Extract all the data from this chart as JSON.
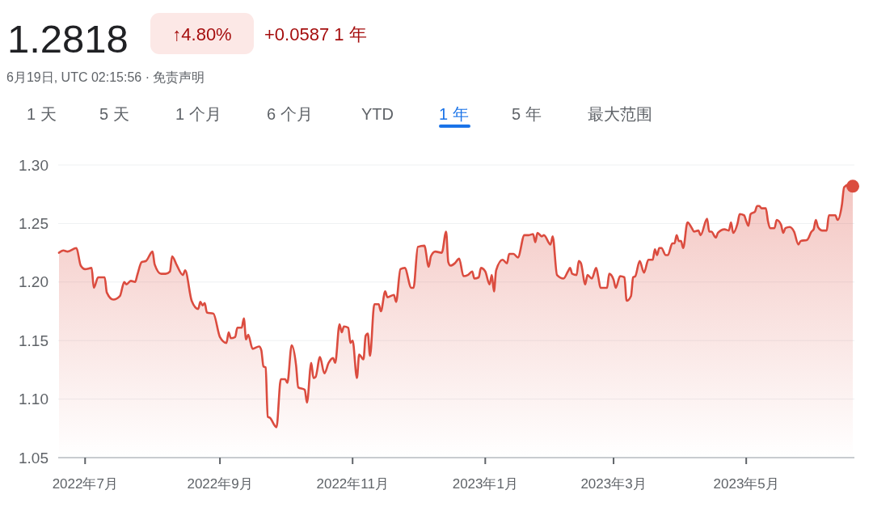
{
  "chart_data": {
    "type": "area",
    "title": "1.2818",
    "subtitle": "6月19日, UTC 02:15:56 · 免责声明",
    "annotations": [
      "↑4.80%",
      "+0.0587 1 年",
      "1 天",
      "5 天",
      "1 个月",
      "6 个月",
      "YTD",
      "1 年",
      "5 年",
      "最大范围"
    ],
    "x": [
      "2022-06-19",
      "2022-06-21",
      "2022-06-23",
      "2022-06-27",
      "2022-06-29",
      "2022-07-01",
      "2022-07-04",
      "2022-07-05",
      "2022-07-07",
      "2022-07-10",
      "2022-07-11",
      "2022-07-14",
      "2022-07-17",
      "2022-07-19",
      "2022-07-20",
      "2022-07-22",
      "2022-07-24",
      "2022-07-25",
      "2022-07-27",
      "2022-07-29",
      "2022-08-01",
      "2022-08-02",
      "2022-08-05",
      "2022-08-07",
      "2022-08-09",
      "2022-08-10",
      "2022-08-12",
      "2022-08-15",
      "2022-08-16",
      "2022-08-19",
      "2022-08-22",
      "2022-08-23",
      "2022-08-24",
      "2022-08-25",
      "2022-08-26",
      "2022-08-29",
      "2022-09-01",
      "2022-09-04",
      "2022-09-05",
      "2022-09-06",
      "2022-09-08",
      "2022-09-09",
      "2022-09-11",
      "2022-09-12",
      "2022-09-13",
      "2022-09-14",
      "2022-09-16",
      "2022-09-19",
      "2022-09-20",
      "2022-09-21",
      "2022-09-22",
      "2022-09-23",
      "2022-09-24",
      "2022-09-27",
      "2022-09-29",
      "2022-10-01",
      "2022-10-02",
      "2022-10-04",
      "2022-10-06",
      "2022-10-07",
      "2022-10-10",
      "2022-10-11",
      "2022-10-13",
      "2022-10-14",
      "2022-10-15",
      "2022-10-17",
      "2022-10-19",
      "2022-10-21",
      "2022-10-23",
      "2022-10-24",
      "2022-10-26",
      "2022-10-27",
      "2022-10-28",
      "2022-10-30",
      "2022-10-31",
      "2022-11-01",
      "2022-11-03",
      "2022-11-04",
      "2022-11-06",
      "2022-11-07",
      "2022-11-08",
      "2022-11-09",
      "2022-11-11",
      "2022-11-13",
      "2022-11-14",
      "2022-11-16",
      "2022-11-17",
      "2022-11-20",
      "2022-11-21",
      "2022-11-23",
      "2022-11-25",
      "2022-11-28",
      "2022-11-29",
      "2022-12-01",
      "2022-12-04",
      "2022-12-06",
      "2022-12-07",
      "2022-12-09",
      "2022-12-12",
      "2022-12-14",
      "2022-12-15",
      "2022-12-16",
      "2022-12-18",
      "2022-12-20",
      "2022-12-22",
      "2022-12-24",
      "2022-12-26",
      "2022-12-27",
      "2022-12-29",
      "2022-12-30",
      "2023-01-01",
      "2023-01-03",
      "2023-01-04",
      "2023-01-05",
      "2023-01-06",
      "2023-01-09",
      "2023-01-11",
      "2023-01-12",
      "2023-01-14",
      "2023-01-16",
      "2023-01-19",
      "2023-01-21",
      "2023-01-23",
      "2023-01-24",
      "2023-01-25",
      "2023-01-27",
      "2023-01-28",
      "2023-01-31",
      "2023-02-01",
      "2023-02-03",
      "2023-02-06",
      "2023-02-08",
      "2023-02-09",
      "2023-02-10",
      "2023-02-12",
      "2023-02-13",
      "2023-02-14",
      "2023-02-16",
      "2023-02-17",
      "2023-02-19",
      "2023-02-21",
      "2023-02-22",
      "2023-02-23",
      "2023-02-26",
      "2023-02-27",
      "2023-03-01",
      "2023-03-02",
      "2023-03-04",
      "2023-03-06",
      "2023-03-07",
      "2023-03-09",
      "2023-03-10",
      "2023-03-11",
      "2023-03-13",
      "2023-03-15",
      "2023-03-17",
      "2023-03-19",
      "2023-03-20",
      "2023-03-21",
      "2023-03-22",
      "2023-03-23",
      "2023-03-25",
      "2023-03-26",
      "2023-03-28",
      "2023-03-29",
      "2023-03-30",
      "2023-03-31",
      "2023-04-01",
      "2023-04-02",
      "2023-04-04",
      "2023-04-06",
      "2023-04-07",
      "2023-04-09",
      "2023-04-10",
      "2023-04-13",
      "2023-04-14",
      "2023-04-15",
      "2023-04-17",
      "2023-04-18",
      "2023-04-21",
      "2023-04-23",
      "2023-04-24",
      "2023-04-25",
      "2023-04-27",
      "2023-04-28",
      "2023-04-30",
      "2023-05-01",
      "2023-05-02",
      "2023-05-03",
      "2023-05-05",
      "2023-05-06",
      "2023-05-07",
      "2023-05-08",
      "2023-05-10",
      "2023-05-11",
      "2023-05-12",
      "2023-05-14",
      "2023-05-15",
      "2023-05-17",
      "2023-05-18",
      "2023-05-19",
      "2023-05-21",
      "2023-05-23",
      "2023-05-25",
      "2023-05-26",
      "2023-05-29",
      "2023-05-31",
      "2023-06-01",
      "2023-06-02",
      "2023-06-03",
      "2023-06-05",
      "2023-06-07",
      "2023-06-08",
      "2023-06-11",
      "2023-06-12",
      "2023-06-14",
      "2023-06-15",
      "2023-06-17",
      "2023-06-19"
    ],
    "series": [
      {
        "color": "#db4c3f",
        "values": [
          1.225,
          1.227,
          1.226,
          1.229,
          1.214,
          1.211,
          1.212,
          1.195,
          1.204,
          1.204,
          1.191,
          1.185,
          1.188,
          1.2,
          1.198,
          1.201,
          1.2,
          1.206,
          1.217,
          1.218,
          1.226,
          1.215,
          1.207,
          1.207,
          1.209,
          1.222,
          1.215,
          1.206,
          1.21,
          1.184,
          1.177,
          1.183,
          1.18,
          1.182,
          1.174,
          1.173,
          1.153,
          1.148,
          1.157,
          1.152,
          1.153,
          1.161,
          1.161,
          1.169,
          1.151,
          1.155,
          1.143,
          1.145,
          1.142,
          1.128,
          1.127,
          1.085,
          1.084,
          1.076,
          1.117,
          1.117,
          1.114,
          1.146,
          1.129,
          1.11,
          1.108,
          1.097,
          1.131,
          1.118,
          1.119,
          1.136,
          1.122,
          1.131,
          1.135,
          1.131,
          1.164,
          1.157,
          1.162,
          1.161,
          1.148,
          1.15,
          1.118,
          1.138,
          1.134,
          1.154,
          1.156,
          1.137,
          1.181,
          1.181,
          1.175,
          1.192,
          1.187,
          1.189,
          1.183,
          1.211,
          1.212,
          1.195,
          1.195,
          1.23,
          1.231,
          1.213,
          1.222,
          1.226,
          1.225,
          1.243,
          1.217,
          1.214,
          1.216,
          1.22,
          1.205,
          1.206,
          1.209,
          1.203,
          1.204,
          1.212,
          1.209,
          1.198,
          1.206,
          1.192,
          1.21,
          1.219,
          1.216,
          1.224,
          1.224,
          1.221,
          1.24,
          1.24,
          1.241,
          1.234,
          1.242,
          1.239,
          1.24,
          1.232,
          1.239,
          1.206,
          1.203,
          1.209,
          1.212,
          1.207,
          1.206,
          1.218,
          1.216,
          1.198,
          1.206,
          1.203,
          1.212,
          1.204,
          1.195,
          1.195,
          1.207,
          1.202,
          1.195,
          1.205,
          1.204,
          1.184,
          1.188,
          1.204,
          1.205,
          1.218,
          1.208,
          1.219,
          1.219,
          1.228,
          1.223,
          1.229,
          1.229,
          1.223,
          1.223,
          1.233,
          1.233,
          1.24,
          1.235,
          1.235,
          1.229,
          1.251,
          1.246,
          1.243,
          1.244,
          1.24,
          1.254,
          1.243,
          1.243,
          1.238,
          1.242,
          1.245,
          1.244,
          1.251,
          1.242,
          1.25,
          1.258,
          1.257,
          1.252,
          1.248,
          1.258,
          1.26,
          1.265,
          1.265,
          1.263,
          1.263,
          1.252,
          1.246,
          1.246,
          1.253,
          1.249,
          1.242,
          1.246,
          1.247,
          1.243,
          1.232,
          1.235,
          1.236,
          1.243,
          1.245,
          1.253,
          1.247,
          1.244,
          1.244,
          1.257,
          1.257,
          1.253,
          1.266,
          1.281,
          1.283,
          1.2818
        ]
      },
      {
        "type": "scatter",
        "color": "#db4c3f",
        "marker": "circle",
        "x": [
          "2023-06-19"
        ],
        "values": [
          1.2818
        ]
      }
    ],
    "xlim": [
      "2022-06-19",
      "2023-06-19"
    ],
    "xticks": [
      {
        "value": "2022-07-01",
        "label": "2022年7月"
      },
      {
        "value": "2022-09-01",
        "label": "2022年9月"
      },
      {
        "value": "2022-11-01",
        "label": "2022年11月"
      },
      {
        "value": "2023-01-01",
        "label": "2023年1月"
      },
      {
        "value": "2023-03-01",
        "label": "2023年3月"
      },
      {
        "value": "2023-05-01",
        "label": "2023年5月"
      }
    ],
    "ylim": [
      1.05,
      1.3
    ],
    "yticks": [
      1.05,
      {
        "value": 1.1,
        "label": "1.10"
      },
      1.15,
      {
        "value": 1.2,
        "label": "1.20"
      },
      1.25,
      {
        "value": 1.3,
        "label": "1.30"
      }
    ],
    "grid": "y"
  }
}
